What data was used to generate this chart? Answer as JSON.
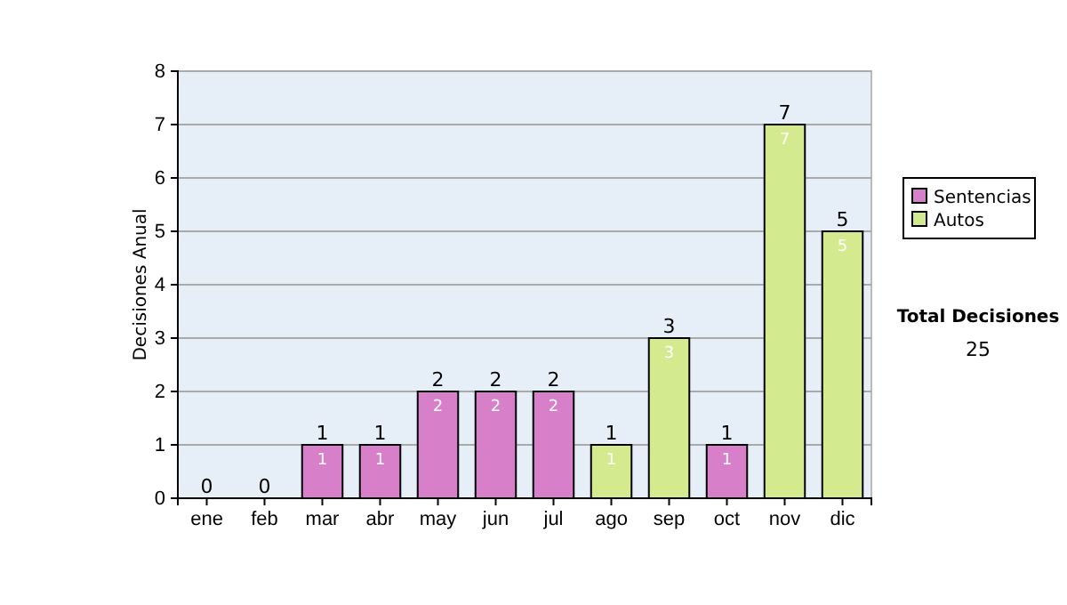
{
  "chart_data": {
    "type": "bar",
    "stacked": true,
    "ylabel": "Decisiones Anual",
    "categories": [
      "ene",
      "feb",
      "mar",
      "abr",
      "may",
      "jun",
      "jul",
      "ago",
      "sep",
      "oct",
      "nov",
      "dic"
    ],
    "series": [
      {
        "name": "Sentencias",
        "color": "#d77fc9",
        "values": [
          0,
          0,
          1,
          1,
          2,
          2,
          2,
          0,
          0,
          1,
          0,
          0
        ],
        "value_labels": [
          null,
          null,
          "1",
          "1",
          "2",
          "2",
          "2",
          null,
          null,
          "1",
          null,
          null
        ]
      },
      {
        "name": "Autos",
        "color": "#d3ea8f",
        "values": [
          0,
          0,
          0,
          0,
          0,
          0,
          0,
          1,
          3,
          0,
          7,
          5
        ],
        "value_labels": [
          null,
          null,
          null,
          null,
          null,
          null,
          null,
          "1",
          "3",
          null,
          "7",
          "5"
        ]
      }
    ],
    "totals": [
      "0",
      "0",
      "1",
      "1",
      "2",
      "2",
      "2",
      "1",
      "3",
      "1",
      "7",
      "5"
    ],
    "ylim": [
      0,
      8
    ],
    "yticks": [
      0,
      1,
      2,
      3,
      4,
      5,
      6,
      7,
      8
    ],
    "grid": "y",
    "legend": "right",
    "annotations": [
      "Total Decisiones",
      "25"
    ]
  }
}
